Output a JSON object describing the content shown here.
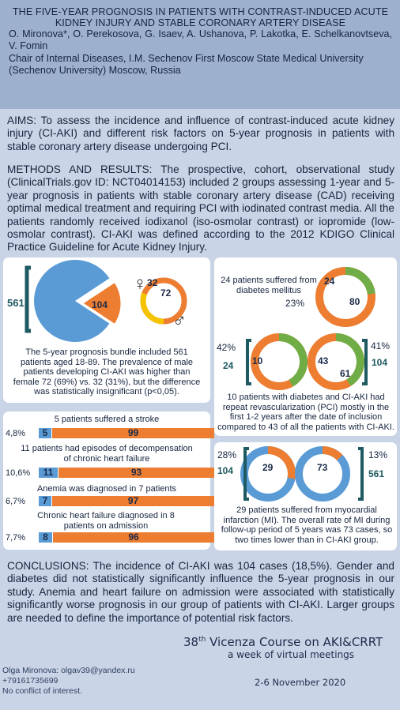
{
  "header": {
    "title": "THE FIVE-YEAR PROGNOSIS IN PATIENTS WITH CONTRAST-INDUCED ACUTE KIDNEY INJURY AND STABLE CORONARY ARTERY DISEASE",
    "authors": "O. Mironova*, O. Perekosova, G. Isaev, A. Ushanova, P. Lakotka, E. Schelkanovtseva, V. Fomin",
    "affiliation": "Chair of Internal Diseases, I.M. Sechenov First Moscow State Medical University (Sechenov University) Moscow, Russia"
  },
  "aims": "AIMS: To assess the incidence and influence of contrast-induced acute kidney injury (CI-AKI) and different risk factors on 5-year prognosis in patients with stable coronary artery disease undergoing PCI.",
  "methods": "METHODS AND RESULTS: The prospective, cohort, observational study (ClinicalTrials.gov ID: NCT04014153) included 2 groups assessing 1-year and 5-year prognosis in patients with stable coronary artery disease (CAD) receiving optimal medical treatment and requiring PCI with iodinated contrast media. All the patients randomly received iodixanol (iso-osmolar contrast) or iopromide (low-osmolar contrast). CI-AKI was defined according to the 2012 KDIGO Clinical Practice Guideline for Acute Kidney Injury.",
  "panel1": {
    "total": "561",
    "aki": "104",
    "female": "32",
    "male": "72",
    "female_symbol": "♀",
    "male_symbol": "♂",
    "text": "The 5-year prognosis bundle included 561 patients aged 18-89. The prevalence of male patients developing CI-AKI was higher than female 72 (69%) vs. 32 (31%), but the difference was statistically insignificant (p<0,05)."
  },
  "panel2": {
    "rows": [
      {
        "caption": "5 patients suffered a stroke",
        "pct": "4,8%",
        "a": "5",
        "b": "99",
        "frac": 0.048
      },
      {
        "caption": "11 patients had episodes of decompensation of chronic heart failure",
        "pct": "10,6%",
        "a": "11",
        "b": "93",
        "frac": 0.106
      },
      {
        "caption": "Anemia was diagnosed in 7 patients",
        "pct": "6,7%",
        "a": "7",
        "b": "97",
        "frac": 0.067
      },
      {
        "caption": "Chronic heart failure diagnosed in 8 patients on admission",
        "pct": "7,7%",
        "a": "8",
        "b": "96",
        "frac": 0.077
      }
    ]
  },
  "panel3": {
    "dm_text": "24 patients suffered from diabetes mellitus",
    "dm_a": "24",
    "dm_b": "80",
    "dm_pct": "23%",
    "left_pct": "42%",
    "left_n": "24",
    "left_inner": "10",
    "right_pct": "41%",
    "right_n": "104",
    "right_a": "43",
    "right_b": "61",
    "text": "10 patients with diabetes and CI-AKI had repeat revascularization (PCI) mostly in the first 1-2 years after the date of inclusion compared to 43 of all the patients with CI-AKI."
  },
  "panel4": {
    "left_pct": "28%",
    "left_n": "104",
    "left_inner": "29",
    "right_pct": "13%",
    "right_n": "561",
    "right_inner": "73",
    "text": "29 patients suffered from myocardial infarction (MI). The overall rate of MI during follow-up period of 5 years was 73 cases, so two times lower than in CI-AKI group."
  },
  "conclusions": "CONCLUSIONS: The incidence of CI-AKI was 104 cases (18,5%). Gender and diabetes did not statistically significantly influence the 5-year prognosis in our study. Anemia and heart failure on admission were associated with statistically significantly worse prognosis in our group of patients with CI-AKI. Larger groups are needed to define the importance of potential risk factors.",
  "footer": {
    "email": "Olga Mironova: olgav39@yandex.ru",
    "phone": "+79161735699",
    "coi": "No conflict of interest.",
    "course_prefix": "38",
    "course_sup": "th",
    "course_name": " Vicenza Course on AKI&CRRT",
    "course_sub": "a week of virtual meetings",
    "dates": "2-6 November 2020"
  },
  "colors": {
    "blue": "#5b9bd5",
    "orange": "#ed7d31",
    "yellow": "#f5c400",
    "teal": "#1e5a61",
    "header": "#9db0ce",
    "page": "#c9d5e6"
  }
}
